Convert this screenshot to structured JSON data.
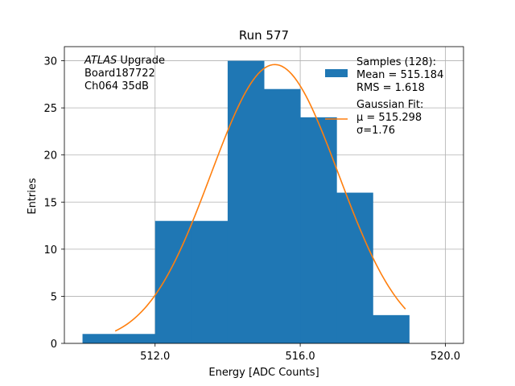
{
  "chart_data": {
    "type": "histogram",
    "title": "Run 577",
    "xlabel": "Energy [ADC Counts]",
    "ylabel": "Entries",
    "xlim": [
      509.5,
      520.5
    ],
    "ylim": [
      0,
      31.5
    ],
    "x_ticks": [
      512.0,
      516.0,
      520.0
    ],
    "x_tick_labels": [
      "512.0",
      "516.0",
      "520.0"
    ],
    "y_ticks": [
      0,
      5,
      10,
      15,
      20,
      25,
      30
    ],
    "y_tick_labels": [
      "0",
      "5",
      "10",
      "15",
      "20",
      "25",
      "30"
    ],
    "grid": true,
    "bins": [
      {
        "x0": 510,
        "x1": 511,
        "value": 1
      },
      {
        "x0": 511,
        "x1": 512,
        "value": 1
      },
      {
        "x0": 512,
        "x1": 513,
        "value": 13
      },
      {
        "x0": 513,
        "x1": 514,
        "value": 13
      },
      {
        "x0": 514,
        "x1": 515,
        "value": 30
      },
      {
        "x0": 515,
        "x1": 516,
        "value": 27
      },
      {
        "x0": 516,
        "x1": 517,
        "value": 24
      },
      {
        "x0": 517,
        "x1": 518,
        "value": 16
      },
      {
        "x0": 518,
        "x1": 519,
        "value": 3
      }
    ],
    "fit": {
      "type": "gaussian",
      "mu": 515.298,
      "sigma": 1.76,
      "amplitude": 29.6,
      "x_range": [
        510.9,
        518.9
      ]
    },
    "bar_color": "#1f77b4",
    "fit_color": "#ff7f0e",
    "legend": {
      "placement": "top-right",
      "hist_lines": [
        "Samples (128):",
        " Mean = 515.184",
        " RMS = 1.618"
      ],
      "fit_lines": [
        "Gaussian Fit:",
        " μ = 515.298",
        " σ=1.76"
      ]
    },
    "annotation": {
      "lines": [
        {
          "italic": "ATLAS",
          "text": " Upgrade"
        },
        {
          "italic": "",
          "text": " Board187722"
        },
        {
          "italic": "",
          "text": " Ch064 35dB"
        }
      ]
    }
  }
}
